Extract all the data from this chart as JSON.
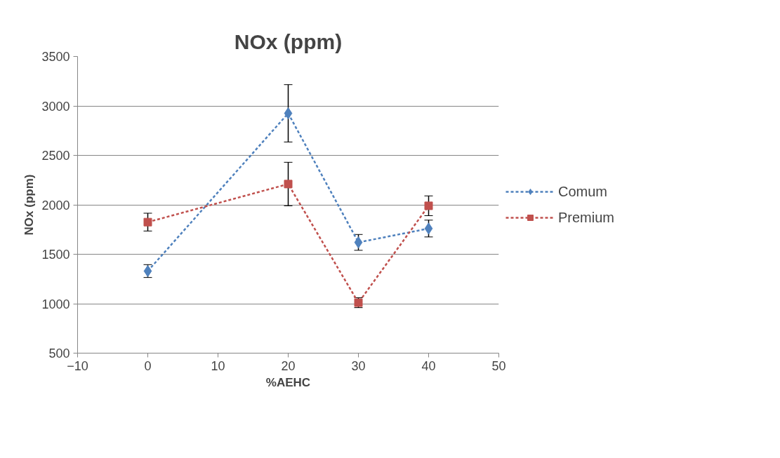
{
  "chart_data": {
    "type": "line",
    "title": "NOx (ppm)",
    "xlabel": "%AEHC",
    "ylabel": "NOx (ppm)",
    "x": [
      0,
      20,
      30,
      40
    ],
    "series": [
      {
        "name": "Comum",
        "color": "#4f81bd",
        "marker": "diamond",
        "values": [
          1330,
          2925,
          1620,
          1760
        ],
        "errors": [
          65,
          290,
          80,
          85
        ]
      },
      {
        "name": "Premium",
        "color": "#c0504d",
        "marker": "square",
        "values": [
          1825,
          2210,
          1010,
          1990
        ],
        "errors": [
          90,
          220,
          50,
          100
        ]
      }
    ],
    "line_style": "dashed",
    "xlim": [
      -10,
      50
    ],
    "xticks": [
      -10,
      0,
      10,
      20,
      30,
      40,
      50
    ],
    "ylim": [
      500,
      3500
    ],
    "yticks": [
      500,
      1000,
      1500,
      2000,
      2500,
      3000,
      3500
    ],
    "grid": "y",
    "legend": "right"
  }
}
